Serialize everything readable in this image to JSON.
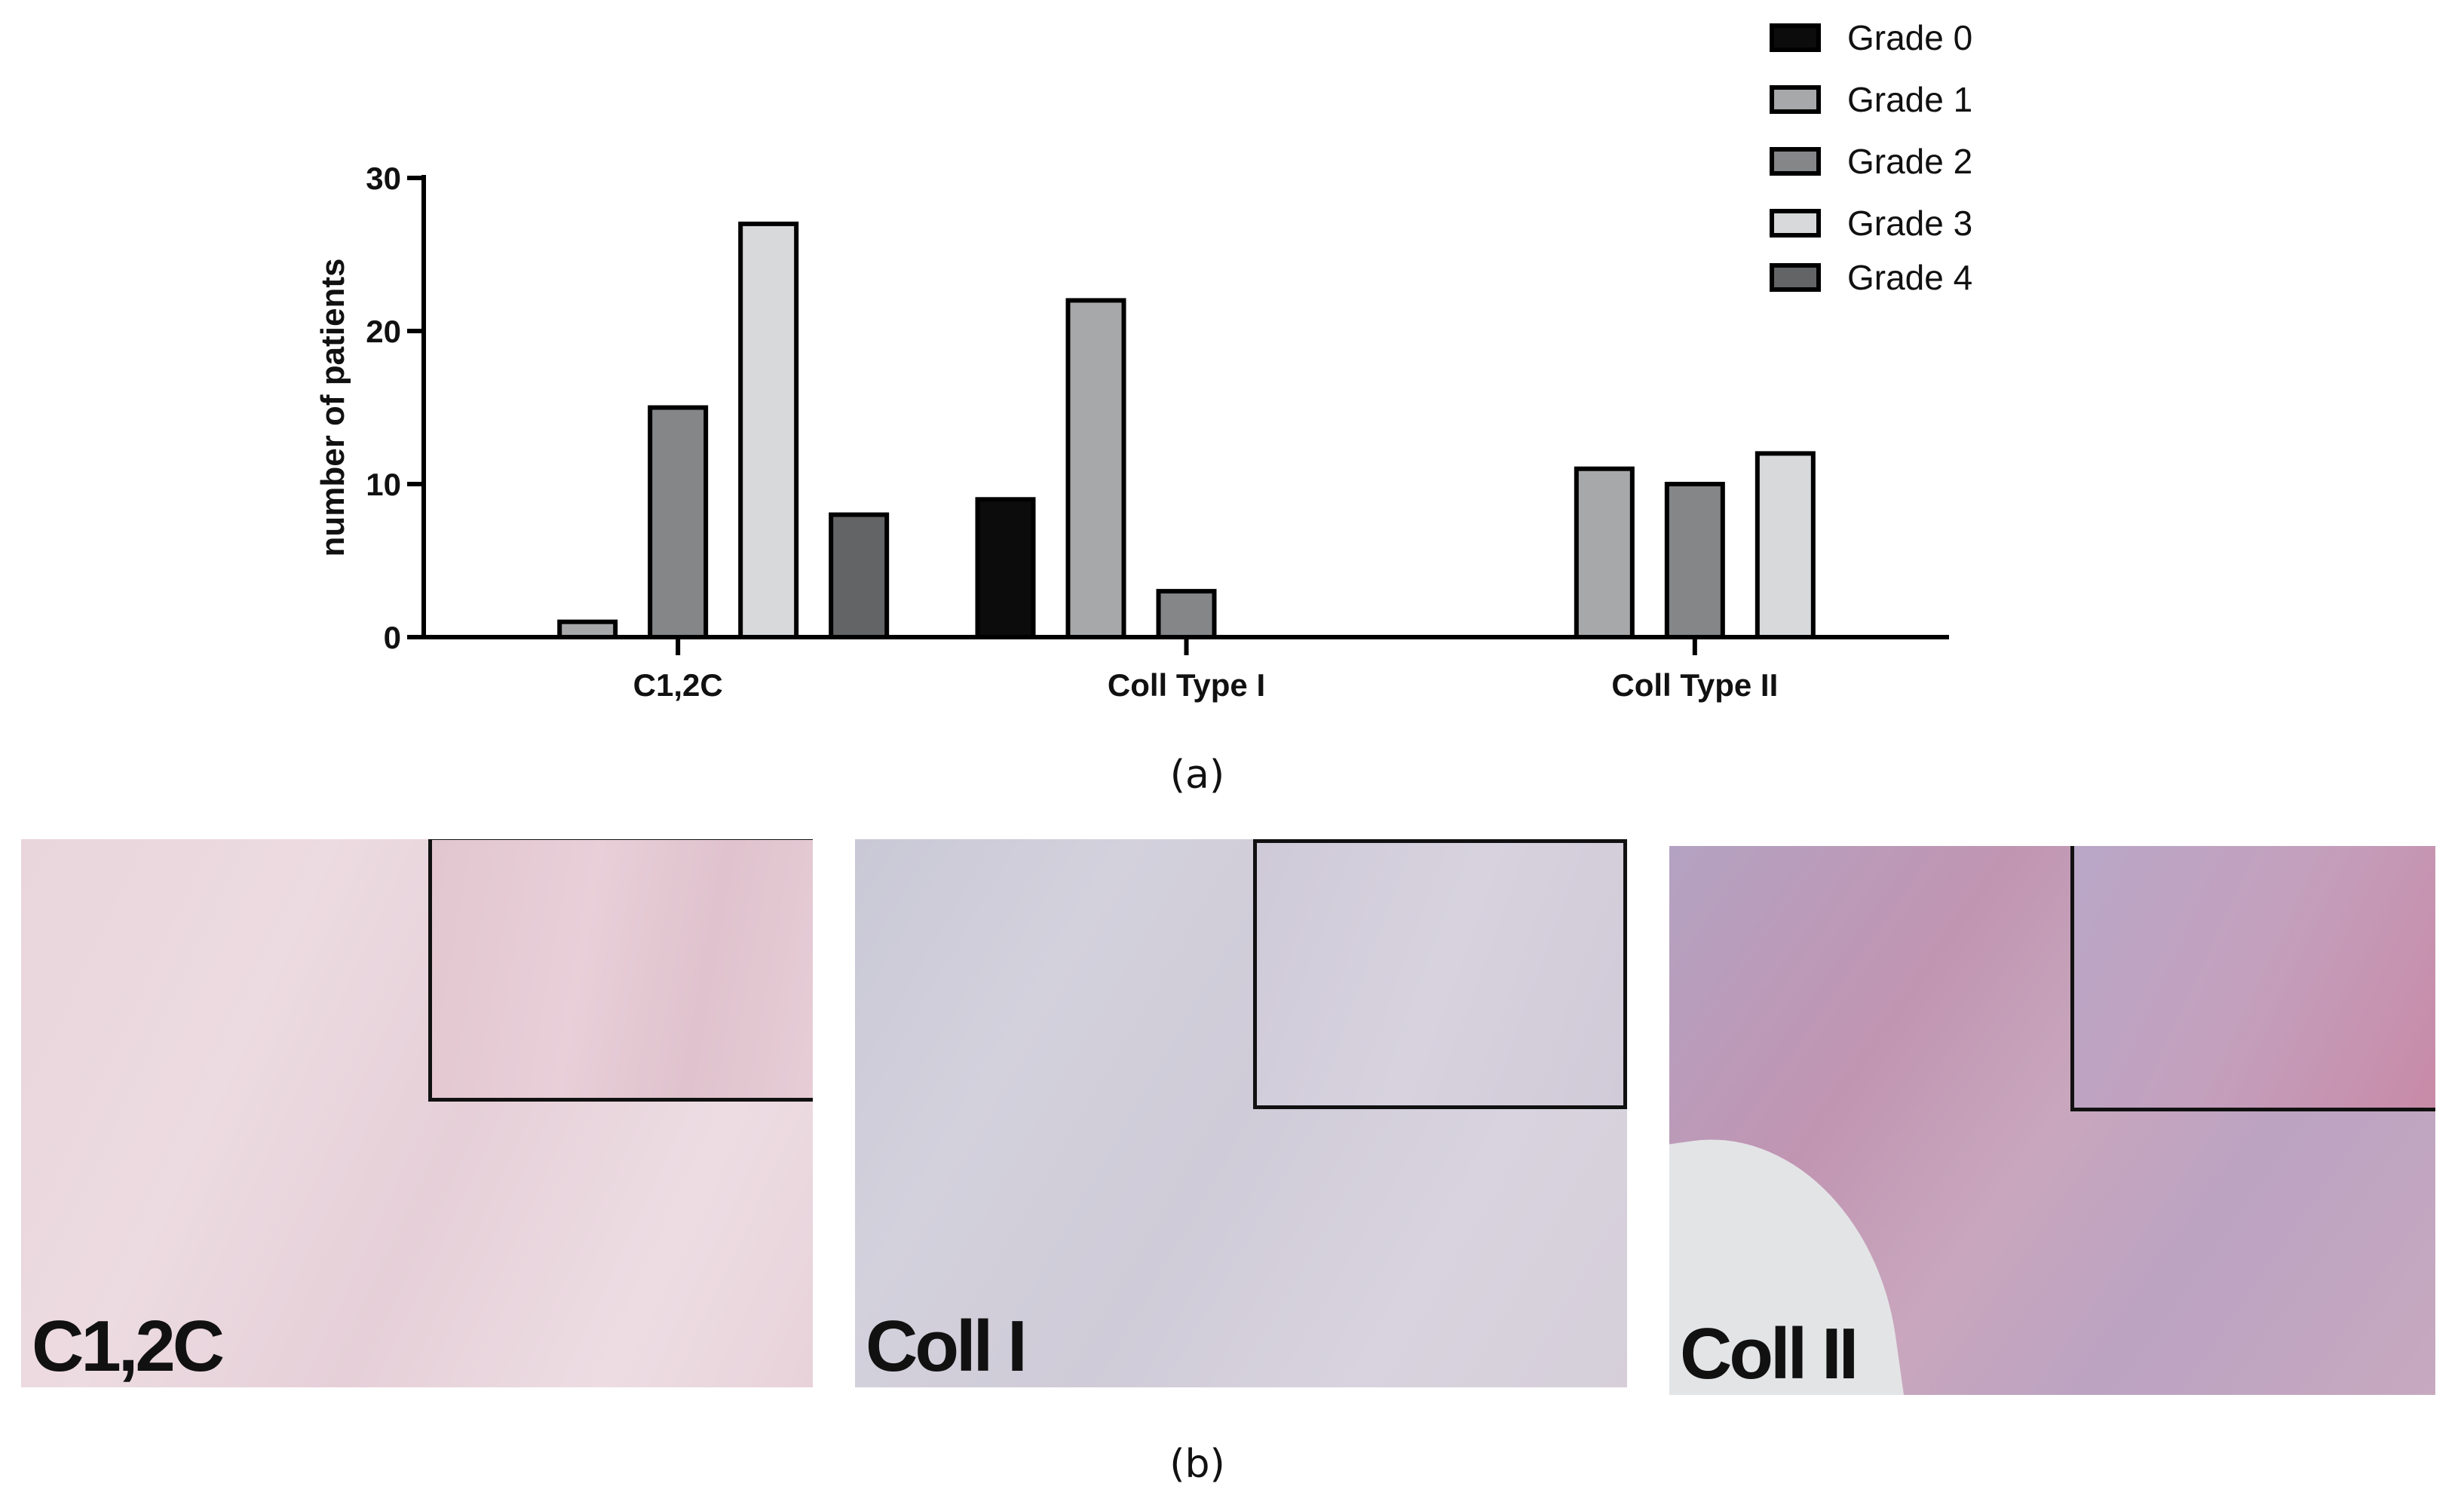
{
  "chart_data": {
    "type": "bar",
    "categories": [
      "C1,2C",
      "Coll Type I",
      "Coll Type II"
    ],
    "series": [
      {
        "name": "Grade 0",
        "values": [
          0,
          9,
          0
        ],
        "color": "#0c0c0c"
      },
      {
        "name": "Grade 1",
        "values": [
          1,
          22,
          11
        ],
        "color": "#a7a8aa"
      },
      {
        "name": "Grade 2",
        "values": [
          15,
          3,
          10
        ],
        "color": "#858688"
      },
      {
        "name": "Grade 3",
        "values": [
          27,
          0,
          12
        ],
        "color": "#d8d9da"
      },
      {
        "name": "Grade 4",
        "values": [
          8,
          0,
          0
        ],
        "color": "#636465"
      }
    ],
    "ylabel": "number of patients",
    "xlabel": "",
    "ylim": [
      0,
      30
    ],
    "yticks": [
      0,
      10,
      20,
      30
    ],
    "legend_position": "top-right",
    "grid": false
  },
  "panels": {
    "a_label": "(a)",
    "b_label": "(b)"
  },
  "micrographs": [
    {
      "label": "C1,2C",
      "tint": "pink"
    },
    {
      "label": "Coll I",
      "tint": "lavender"
    },
    {
      "label": "Coll II",
      "tint": "purple-pink"
    }
  ]
}
